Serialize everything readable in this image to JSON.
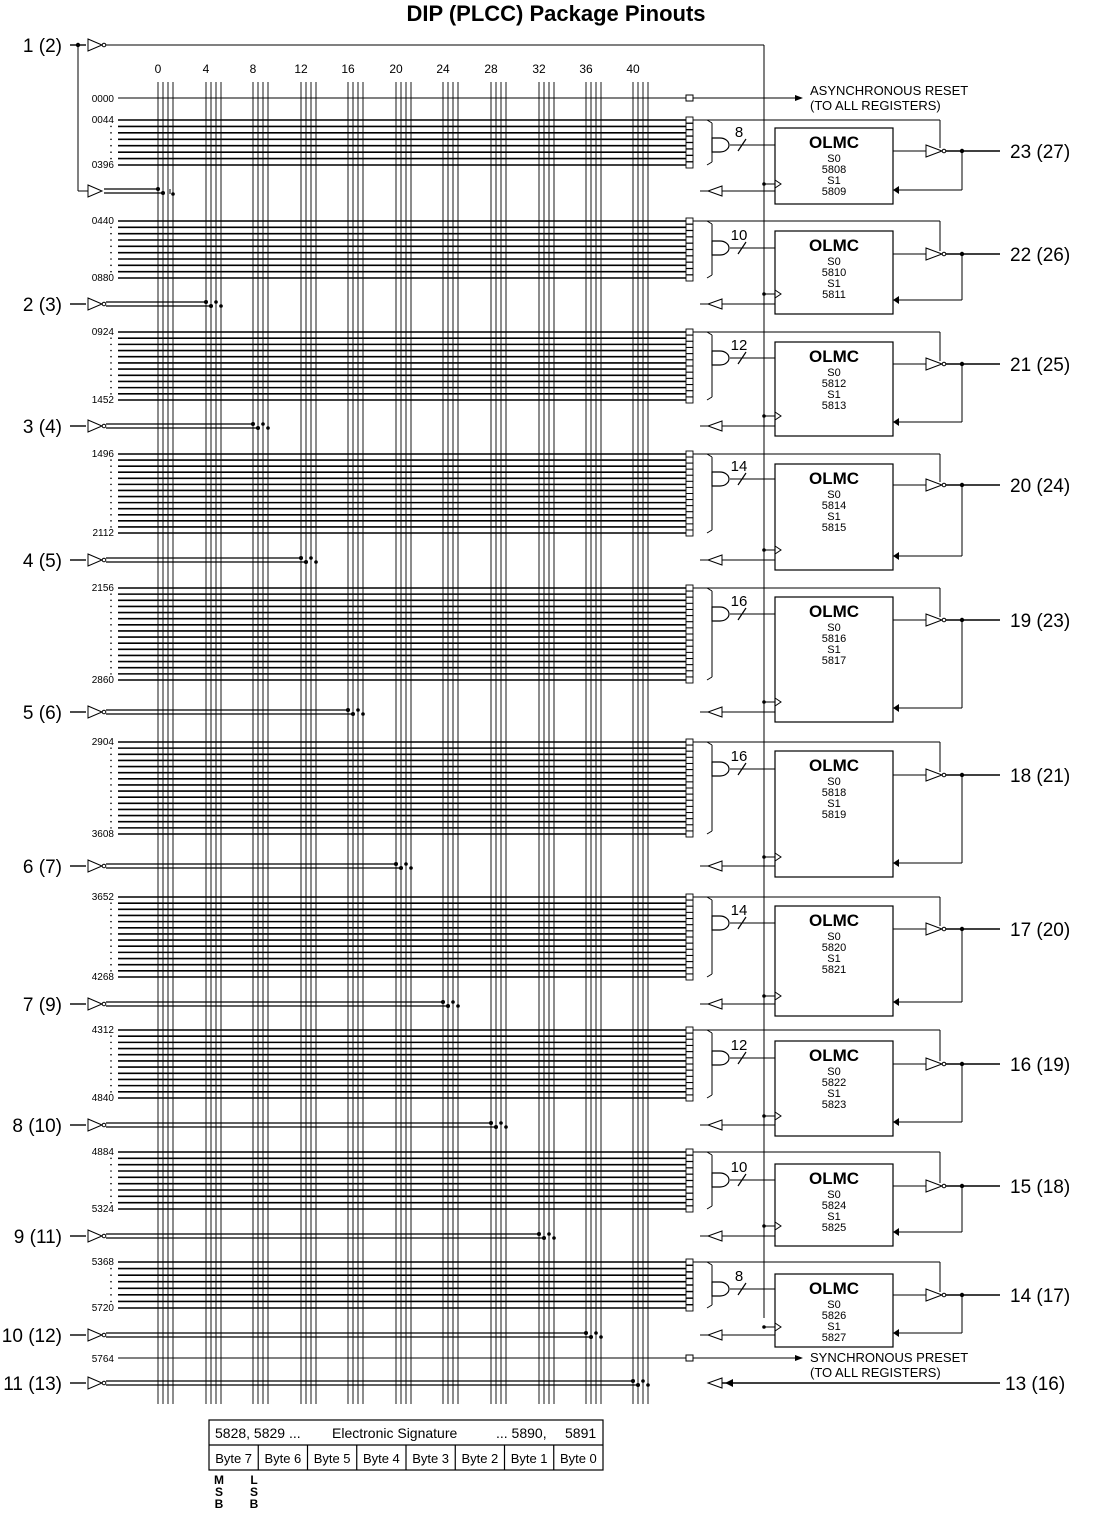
{
  "title": "DIP (PLCC) Package Pinouts",
  "column_labels": [
    "0",
    "4",
    "8",
    "12",
    "16",
    "20",
    "24",
    "28",
    "32",
    "36",
    "40"
  ],
  "reset_row": {
    "label": "0000",
    "text1": "ASYNCHRONOUS RESET",
    "text2": "(TO ALL REGISTERS)"
  },
  "preset_row": {
    "label": "5764",
    "text1": "SYNCHRONOUS PRESET",
    "text2": "(TO ALL REGISTERS)"
  },
  "input_pins": [
    "1 (2)",
    "2 (3)",
    "3 (4)",
    "4 (5)",
    "5 (6)",
    "6 (7)",
    "7 (9)",
    "8 (10)",
    "9 (11)",
    "10 (12)",
    "11 (13)"
  ],
  "clock_pin_label": "1 (2)",
  "bottom_input_label": "11 (13)",
  "bottom_right_label": "13 (16)",
  "olmc_blocks": [
    {
      "name": "OLMC",
      "s0": "S0",
      "s0_fuse": "5808",
      "s1": "S1",
      "s1_fuse": "5809",
      "terms": "8",
      "row_start": "0044",
      "row_end": "0396",
      "output_pin": "23 (27)"
    },
    {
      "name": "OLMC",
      "s0": "S0",
      "s0_fuse": "5810",
      "s1": "S1",
      "s1_fuse": "5811",
      "terms": "10",
      "row_start": "0440",
      "row_end": "0880",
      "output_pin": "22 (26)"
    },
    {
      "name": "OLMC",
      "s0": "S0",
      "s0_fuse": "5812",
      "s1": "S1",
      "s1_fuse": "5813",
      "terms": "12",
      "row_start": "0924",
      "row_end": "1452",
      "output_pin": "21 (25)"
    },
    {
      "name": "OLMC",
      "s0": "S0",
      "s0_fuse": "5814",
      "s1": "S1",
      "s1_fuse": "5815",
      "terms": "14",
      "row_start": "1496",
      "row_end": "2112",
      "output_pin": "20 (24)"
    },
    {
      "name": "OLMC",
      "s0": "S0",
      "s0_fuse": "5816",
      "s1": "S1",
      "s1_fuse": "5817",
      "terms": "16",
      "row_start": "2156",
      "row_end": "2860",
      "output_pin": "19 (23)"
    },
    {
      "name": "OLMC",
      "s0": "S0",
      "s0_fuse": "5818",
      "s1": "S1",
      "s1_fuse": "5819",
      "terms": "16",
      "row_start": "2904",
      "row_end": "3608",
      "output_pin": "18 (21)"
    },
    {
      "name": "OLMC",
      "s0": "S0",
      "s0_fuse": "5820",
      "s1": "S1",
      "s1_fuse": "5821",
      "terms": "14",
      "row_start": "3652",
      "row_end": "4268",
      "output_pin": "17 (20)"
    },
    {
      "name": "OLMC",
      "s0": "S0",
      "s0_fuse": "5822",
      "s1": "S1",
      "s1_fuse": "5823",
      "terms": "12",
      "row_start": "4312",
      "row_end": "4840",
      "output_pin": "16 (19)"
    },
    {
      "name": "OLMC",
      "s0": "S0",
      "s0_fuse": "5824",
      "s1": "S1",
      "s1_fuse": "5825",
      "terms": "10",
      "row_start": "4884",
      "row_end": "5324",
      "output_pin": "15 (18)"
    },
    {
      "name": "OLMC",
      "s0": "S0",
      "s0_fuse": "5826",
      "s1": "S1",
      "s1_fuse": "5827",
      "terms": "8",
      "row_start": "5368",
      "row_end": "5720",
      "output_pin": "14 (17)"
    }
  ],
  "signature": {
    "header_left": "5828, 5829 ...",
    "header_mid": "Electronic Signature",
    "header_right": "... 5890,",
    "header_last": "5891",
    "bytes": [
      "Byte 7",
      "Byte 6",
      "Byte 5",
      "Byte 4",
      "Byte 3",
      "Byte 2",
      "Byte 1",
      "Byte 0"
    ],
    "msb": [
      "M",
      "S",
      "B"
    ],
    "lsb": [
      "L",
      "S",
      "B"
    ]
  }
}
